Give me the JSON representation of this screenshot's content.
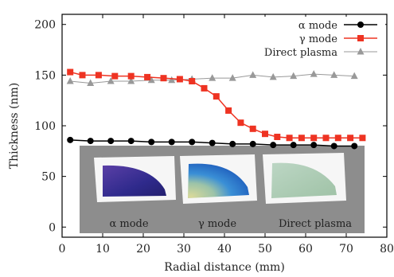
{
  "chart_data": {
    "type": "line",
    "xlabel": "Radial distance (mm)",
    "ylabel": "Thickness (nm)",
    "xlim": [
      0,
      80
    ],
    "ylim": [
      -10,
      210
    ],
    "xticks": [
      0,
      10,
      20,
      30,
      40,
      50,
      60,
      70,
      80
    ],
    "yticks": [
      0,
      50,
      100,
      150,
      200
    ],
    "legend_position": "top-right",
    "series": [
      {
        "name": "α mode",
        "color": "#000000",
        "marker": "circle",
        "x": [
          2,
          7,
          12,
          17,
          22,
          27,
          32,
          37,
          42,
          47,
          52,
          57,
          62,
          67,
          72
        ],
        "y": [
          86,
          85,
          85,
          85,
          84,
          84,
          84,
          83,
          82,
          82,
          81,
          81,
          81,
          80,
          80
        ]
      },
      {
        "name": "γ mode",
        "color": "#ee3322",
        "marker": "square",
        "x": [
          2,
          5,
          9,
          13,
          17,
          21,
          25,
          29,
          32,
          35,
          38,
          41,
          44,
          47,
          50,
          53,
          56,
          59,
          62,
          65,
          68,
          71,
          74
        ],
        "y": [
          153,
          150,
          150,
          149,
          149,
          148,
          147,
          146,
          144,
          137,
          129,
          115,
          103,
          97,
          92,
          89,
          88,
          88,
          88,
          88,
          88,
          88,
          88
        ]
      },
      {
        "name": "Direct plasma",
        "color": "#999999",
        "marker": "triangle",
        "x": [
          2,
          7,
          12,
          17,
          22,
          27,
          32,
          37,
          42,
          47,
          52,
          57,
          62,
          67,
          72
        ],
        "y": [
          144,
          142,
          144,
          144,
          145,
          145,
          146,
          147,
          147,
          150,
          148,
          149,
          151,
          150,
          149
        ]
      }
    ],
    "inset": {
      "labels": [
        "α mode",
        "γ mode",
        "Direct plasma"
      ]
    }
  }
}
